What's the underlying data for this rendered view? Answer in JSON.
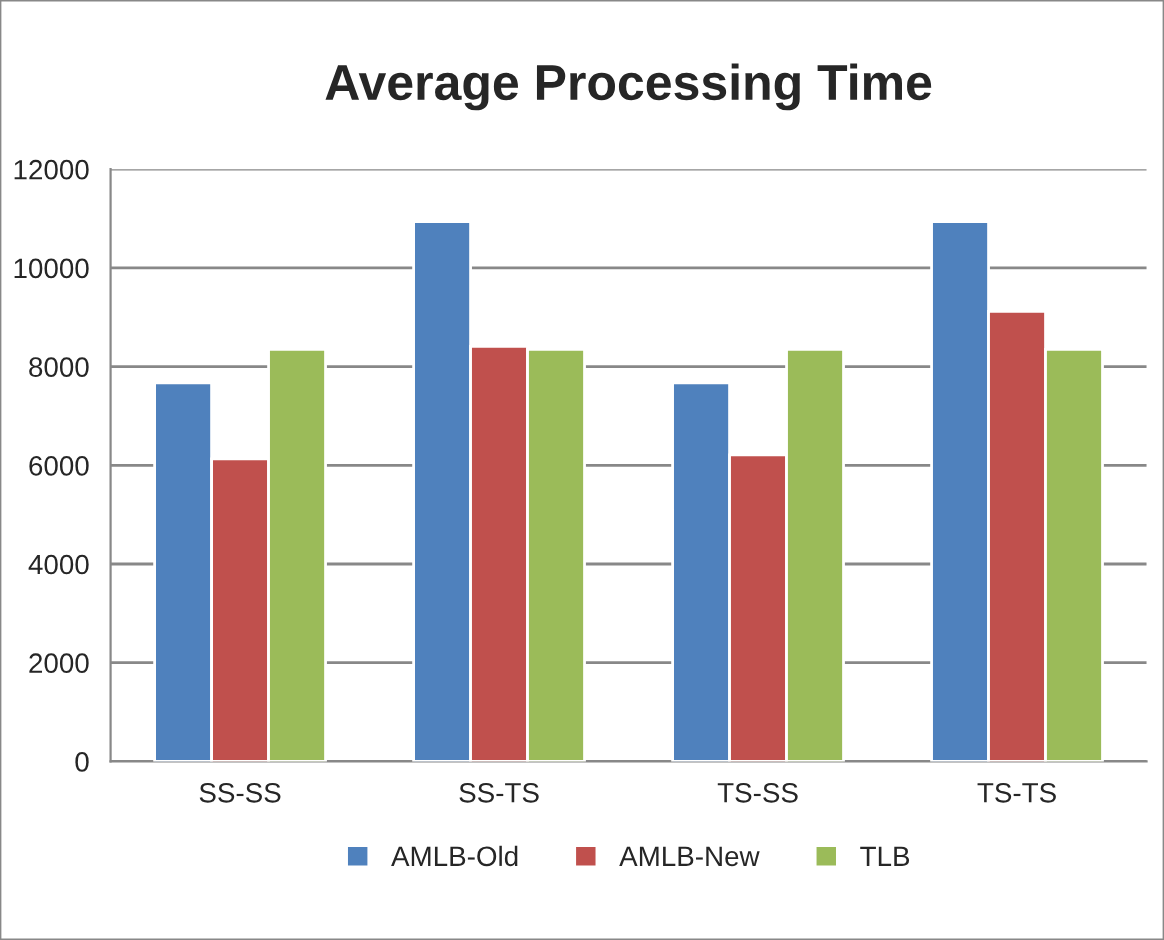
{
  "chart_data": {
    "type": "bar",
    "title": "Average Processing Time",
    "categories": [
      "SS-SS",
      "SS-TS",
      "TS-SS",
      "TS-TS"
    ],
    "series": [
      {
        "name": "AMLB-Old",
        "color": "#4f81bd",
        "values": [
          7670,
          10940,
          7670,
          10940
        ]
      },
      {
        "name": "AMLB-New",
        "color": "#c0504d",
        "values": [
          6130,
          8410,
          6210,
          9120
        ]
      },
      {
        "name": "TLB",
        "color": "#9bbb59",
        "values": [
          8350,
          8350,
          8350,
          8350
        ]
      }
    ],
    "ylim": [
      0,
      12000
    ],
    "yticks": [
      0,
      2000,
      4000,
      6000,
      8000,
      10000,
      12000
    ],
    "grid": "y",
    "legend": "bottom"
  }
}
